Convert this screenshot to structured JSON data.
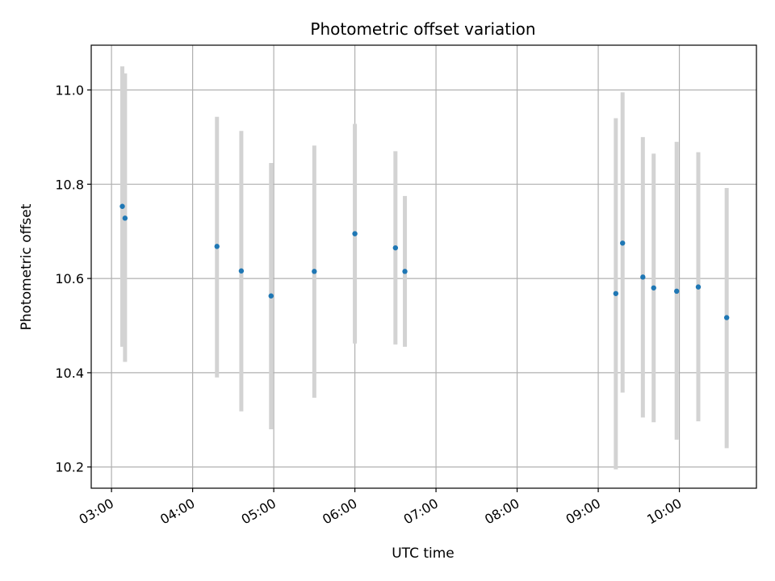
{
  "chart_data": {
    "type": "scatter",
    "title": "Photometric offset variation",
    "xlabel": "UTC time",
    "ylabel": "Photometric offset",
    "x_tick_labels": [
      "03:00",
      "04:00",
      "05:00",
      "06:00",
      "07:00",
      "08:00",
      "09:00",
      "10:00"
    ],
    "y_tick_labels": [
      "10.2",
      "10.4",
      "10.6",
      "10.8",
      "11.0"
    ],
    "x_ticks_hours": [
      3,
      4,
      5,
      6,
      7,
      8,
      9,
      10
    ],
    "y_ticks": [
      10.2,
      10.4,
      10.6,
      10.8,
      11.0
    ],
    "xlim_hours": [
      2.75,
      10.95
    ],
    "ylim": [
      10.155,
      11.095
    ],
    "grid": true,
    "point_color": "#1f77b4",
    "errorbar_color": "#d3d3d3",
    "points": [
      {
        "t": "03:08",
        "y": 10.753,
        "low": 10.455,
        "high": 11.05
      },
      {
        "t": "03:10",
        "y": 10.728,
        "low": 10.423,
        "high": 11.035
      },
      {
        "t": "04:18",
        "y": 10.668,
        "low": 10.39,
        "high": 10.943
      },
      {
        "t": "04:36",
        "y": 10.616,
        "low": 10.318,
        "high": 10.913
      },
      {
        "t": "04:58",
        "y": 10.563,
        "low": 10.28,
        "high": 10.845
      },
      {
        "t": "05:30",
        "y": 10.615,
        "low": 10.347,
        "high": 10.882
      },
      {
        "t": "06:00",
        "y": 10.695,
        "low": 10.462,
        "high": 10.928
      },
      {
        "t": "06:30",
        "y": 10.665,
        "low": 10.46,
        "high": 10.87
      },
      {
        "t": "06:37",
        "y": 10.615,
        "low": 10.455,
        "high": 10.775
      },
      {
        "t": "09:13",
        "y": 10.568,
        "low": 10.195,
        "high": 10.94
      },
      {
        "t": "09:18",
        "y": 10.675,
        "low": 10.358,
        "high": 10.995
      },
      {
        "t": "09:33",
        "y": 10.603,
        "low": 10.305,
        "high": 10.9
      },
      {
        "t": "09:41",
        "y": 10.58,
        "low": 10.295,
        "high": 10.865
      },
      {
        "t": "09:58",
        "y": 10.573,
        "low": 10.258,
        "high": 10.89
      },
      {
        "t": "10:14",
        "y": 10.582,
        "low": 10.297,
        "high": 10.868
      },
      {
        "t": "10:35",
        "y": 10.517,
        "low": 10.24,
        "high": 10.792
      }
    ]
  }
}
